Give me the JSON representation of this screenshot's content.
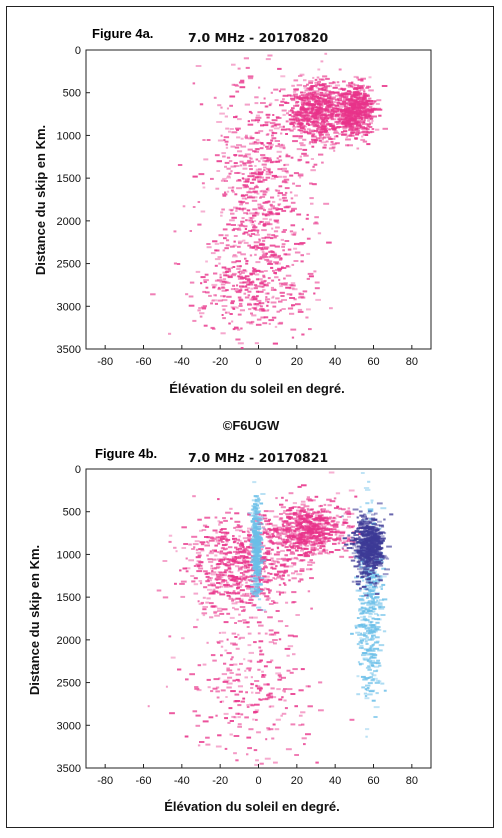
{
  "copyright": "©F6UGW",
  "chart_data": [
    {
      "type": "heatmap",
      "figure_label": "Figure 4a.",
      "title": "7.0 MHz - 20170820",
      "xlabel": "Élévation du soleil en degré.",
      "ylabel": "Distance du skip en Km.",
      "xlim": [
        -90,
        90
      ],
      "ylim": [
        0,
        3500
      ],
      "y_inverted": true,
      "xticks": [
        -80,
        -60,
        -40,
        -20,
        0,
        20,
        40,
        60,
        80
      ],
      "yticks": [
        0,
        500,
        1000,
        1500,
        2000,
        2500,
        3000,
        3500
      ],
      "series": [
        {
          "color": "#e8338a",
          "density_clusters": [
            {
              "x_center": 0,
              "x_spread": 22,
              "y_center": 1600,
              "y_spread": 1000,
              "weight": 1.0
            },
            {
              "x_center": 30,
              "x_spread": 14,
              "y_center": 700,
              "y_spread": 300,
              "weight": 1.0
            },
            {
              "x_center": 50,
              "x_spread": 8,
              "y_center": 700,
              "y_spread": 250,
              "weight": 0.8
            },
            {
              "x_center": -5,
              "x_spread": 25,
              "y_center": 2800,
              "y_spread": 450,
              "weight": 0.5
            }
          ]
        }
      ]
    },
    {
      "type": "heatmap",
      "figure_label": "Figure 4b.",
      "title": "7.0 MHz - 20170821",
      "xlabel": "Élévation du soleil en degré.",
      "ylabel": "Distance du skip en Km.",
      "xlim": [
        -90,
        90
      ],
      "ylim": [
        0,
        3500
      ],
      "y_inverted": true,
      "xticks": [
        -80,
        -60,
        -40,
        -20,
        0,
        20,
        40,
        60,
        80
      ],
      "yticks": [
        0,
        500,
        1000,
        1500,
        2000,
        2500,
        3000,
        3500
      ],
      "series": [
        {
          "color": "#e8338a",
          "density_clusters": [
            {
              "x_center": -10,
              "x_spread": 25,
              "y_center": 1100,
              "y_spread": 450,
              "weight": 1.0
            },
            {
              "x_center": 25,
              "x_spread": 18,
              "y_center": 700,
              "y_spread": 280,
              "weight": 1.0
            },
            {
              "x_center": -5,
              "x_spread": 28,
              "y_center": 2500,
              "y_spread": 900,
              "weight": 0.45
            }
          ]
        },
        {
          "color": "#6bbfe8",
          "density_clusters": [
            {
              "x_center": 57,
              "x_spread": 5,
              "y_center": 1600,
              "y_spread": 900,
              "weight": 0.6
            },
            {
              "x_center": -2,
              "x_spread": 2,
              "y_center": 900,
              "y_spread": 450,
              "weight": 0.5
            }
          ]
        },
        {
          "color": "#3d3a96",
          "density_clusters": [
            {
              "x_center": 57,
              "x_spread": 6,
              "y_center": 900,
              "y_spread": 300,
              "weight": 1.0
            }
          ]
        }
      ]
    }
  ]
}
